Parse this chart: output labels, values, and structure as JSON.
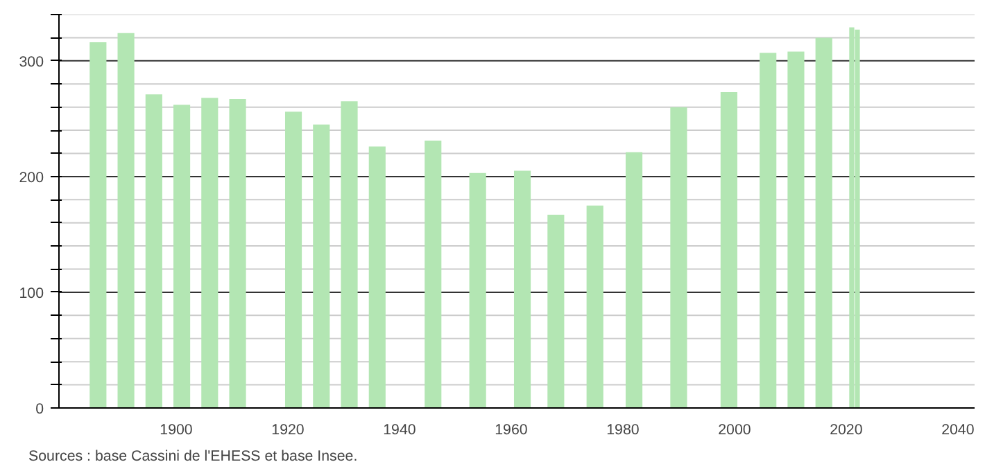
{
  "chart_data": {
    "type": "bar",
    "x": [
      1886,
      1891,
      1896,
      1901,
      1906,
      1911,
      1921,
      1926,
      1931,
      1936,
      1946,
      1954,
      1962,
      1968,
      1975,
      1982,
      1990,
      1999,
      2006,
      2011,
      2016,
      2021,
      2022
    ],
    "values": [
      316,
      324,
      271,
      262,
      268,
      267,
      256,
      245,
      265,
      226,
      231,
      203,
      205,
      167,
      175,
      221,
      260,
      273,
      307,
      308,
      320,
      329,
      327
    ],
    "color": "#b3e6b3",
    "xlim": [
      1879,
      2043
    ],
    "xticks": [
      1900,
      1920,
      1940,
      1960,
      1980,
      2000,
      2020,
      2040
    ],
    "ylim": [
      0,
      340
    ],
    "yticks": [
      0,
      {
        "value": 20,
        "label": null
      },
      {
        "value": 40,
        "label": null
      },
      {
        "value": 60,
        "label": null
      },
      {
        "value": 80,
        "label": null
      },
      100,
      {
        "value": 120,
        "label": null
      },
      {
        "value": 140,
        "label": null
      },
      {
        "value": 160,
        "label": null
      },
      {
        "value": 180,
        "label": null
      },
      200,
      {
        "value": 220,
        "label": null
      },
      {
        "value": 240,
        "label": null
      },
      {
        "value": 260,
        "label": null
      },
      {
        "value": 280,
        "label": null
      },
      300,
      {
        "value": 320,
        "label": null
      },
      {
        "value": 340,
        "label": null
      }
    ],
    "grid": "y",
    "annotations": [
      "Sources : base Cassini de l'EHESS et base Insee."
    ]
  }
}
